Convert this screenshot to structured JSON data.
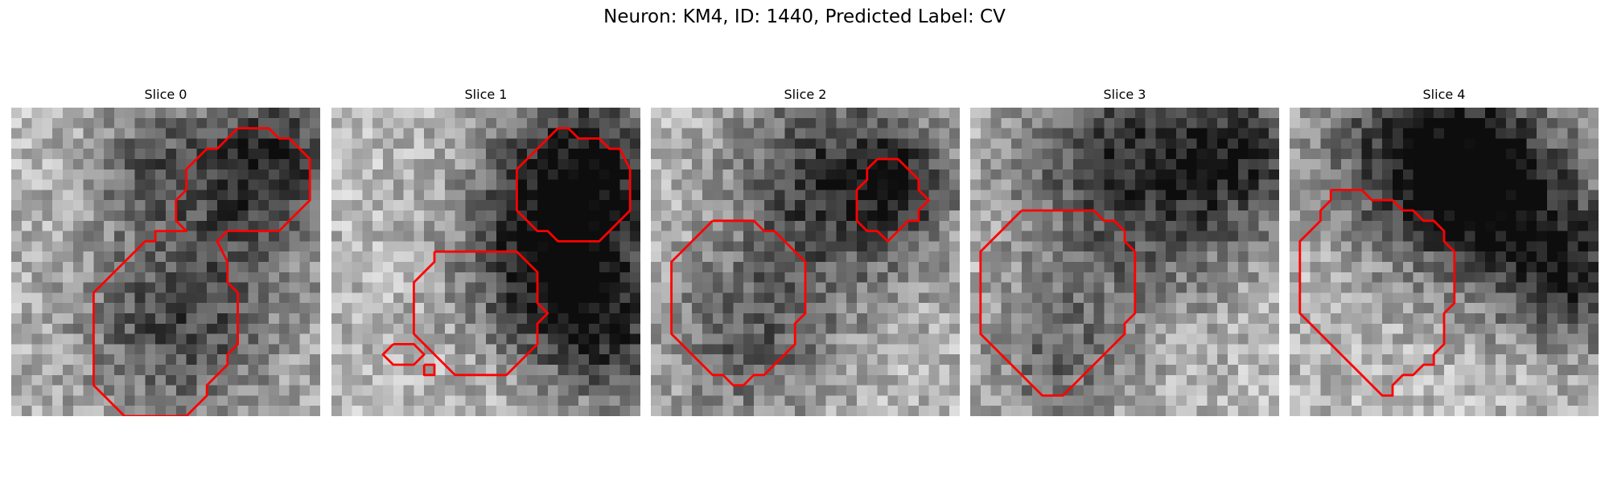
{
  "figure": {
    "title": "Neuron: KM4, ID: 1440, Predicted Label: CV"
  },
  "colors": {
    "contour": "#ff0000",
    "colormap": "gray"
  },
  "panels": [
    {
      "title": "Slice 0",
      "dark_regions": [
        {
          "cx": 24,
          "cy": 5,
          "r": 6,
          "s": 0.55
        },
        {
          "cx": 16,
          "cy": 20,
          "r": 7,
          "s": 0.45
        },
        {
          "cx": 12,
          "cy": 5,
          "r": 4,
          "s": 0.25
        }
      ],
      "contours": [
        [
          [
            22,
            2
          ],
          [
            25,
            2
          ],
          [
            26,
            3
          ],
          [
            27,
            3
          ],
          [
            28,
            4
          ],
          [
            29,
            5
          ],
          [
            29,
            9
          ],
          [
            28,
            10
          ],
          [
            27,
            11
          ],
          [
            26,
            12
          ],
          [
            21,
            12
          ],
          [
            20,
            13
          ],
          [
            21,
            15
          ],
          [
            21,
            17
          ],
          [
            22,
            18
          ],
          [
            22,
            23
          ],
          [
            21,
            24
          ],
          [
            21,
            25
          ],
          [
            20,
            26
          ],
          [
            19,
            27
          ],
          [
            19,
            28
          ],
          [
            18,
            29
          ],
          [
            17,
            30
          ],
          [
            11,
            30
          ],
          [
            11,
            30
          ],
          [
            10,
            29
          ],
          [
            9,
            28
          ],
          [
            8,
            27
          ],
          [
            8,
            18
          ],
          [
            9,
            17
          ],
          [
            10,
            16
          ],
          [
            11,
            15
          ],
          [
            12,
            14
          ],
          [
            13,
            13
          ],
          [
            14,
            13
          ],
          [
            14,
            12
          ],
          [
            17,
            12
          ],
          [
            16,
            11
          ],
          [
            16,
            9
          ],
          [
            17,
            8
          ],
          [
            17,
            6
          ],
          [
            18,
            5
          ],
          [
            19,
            4
          ],
          [
            20,
            4
          ],
          [
            21,
            3
          ],
          [
            22,
            2
          ]
        ]
      ]
    },
    {
      "title": "Slice 1",
      "dark_regions": [
        {
          "cx": 24,
          "cy": 5,
          "r": 6,
          "s": 0.6
        },
        {
          "cx": 21,
          "cy": 15,
          "r": 6,
          "s": 0.6
        },
        {
          "cx": 27,
          "cy": 22,
          "r": 5,
          "s": 0.4
        }
      ],
      "contours": [
        [
          [
            22,
            2
          ],
          [
            23,
            2
          ],
          [
            24,
            3
          ],
          [
            26,
            3
          ],
          [
            27,
            4
          ],
          [
            28,
            4
          ],
          [
            29,
            6
          ],
          [
            29,
            7
          ],
          [
            29,
            10
          ],
          [
            28,
            11
          ],
          [
            27,
            12
          ],
          [
            26,
            13
          ],
          [
            25,
            13
          ],
          [
            22,
            13
          ],
          [
            21,
            12
          ],
          [
            20,
            12
          ],
          [
            19,
            11
          ],
          [
            18,
            10
          ],
          [
            18,
            6
          ],
          [
            19,
            5
          ],
          [
            20,
            4
          ],
          [
            21,
            3
          ],
          [
            22,
            2
          ]
        ],
        [
          [
            10,
            14
          ],
          [
            18,
            14
          ],
          [
            19,
            15
          ],
          [
            20,
            16
          ],
          [
            20,
            19
          ],
          [
            21,
            20
          ],
          [
            20,
            21
          ],
          [
            20,
            23
          ],
          [
            19,
            24
          ],
          [
            18,
            25
          ],
          [
            17,
            26
          ],
          [
            12,
            26
          ],
          [
            11,
            25
          ],
          [
            10,
            24
          ],
          [
            9,
            23
          ],
          [
            8,
            22
          ],
          [
            8,
            17
          ],
          [
            9,
            16
          ],
          [
            10,
            15
          ],
          [
            10,
            14
          ]
        ],
        [
          [
            6,
            23
          ],
          [
            8,
            23
          ],
          [
            9,
            24
          ],
          [
            8,
            25
          ],
          [
            6,
            25
          ],
          [
            5,
            24
          ],
          [
            6,
            23
          ]
        ],
        [
          [
            9,
            25
          ],
          [
            10,
            25
          ],
          [
            10,
            26
          ],
          [
            9,
            26
          ],
          [
            9,
            25
          ]
        ]
      ]
    },
    {
      "title": "Slice 2",
      "dark_regions": [
        {
          "cx": 18,
          "cy": 7,
          "r": 7,
          "s": 0.55
        },
        {
          "cx": 9,
          "cy": 22,
          "r": 6,
          "s": 0.35
        },
        {
          "cx": 24,
          "cy": 7,
          "r": 3,
          "s": 0.3
        }
      ],
      "contours": [
        [
          [
            6,
            11
          ],
          [
            10,
            11
          ],
          [
            11,
            12
          ],
          [
            12,
            12
          ],
          [
            13,
            13
          ],
          [
            14,
            14
          ],
          [
            15,
            15
          ],
          [
            15,
            20
          ],
          [
            14,
            21
          ],
          [
            14,
            23
          ],
          [
            13,
            24
          ],
          [
            12,
            25
          ],
          [
            11,
            26
          ],
          [
            10,
            26
          ],
          [
            9,
            27
          ],
          [
            8,
            27
          ],
          [
            7,
            26
          ],
          [
            6,
            26
          ],
          [
            5,
            25
          ],
          [
            4,
            24
          ],
          [
            3,
            23
          ],
          [
            2,
            22
          ],
          [
            2,
            15
          ],
          [
            3,
            14
          ],
          [
            4,
            13
          ],
          [
            5,
            12
          ],
          [
            6,
            11
          ]
        ],
        [
          [
            22,
            5
          ],
          [
            24,
            5
          ],
          [
            25,
            6
          ],
          [
            26,
            7
          ],
          [
            26,
            8
          ],
          [
            27,
            9
          ],
          [
            26,
            10
          ],
          [
            26,
            11
          ],
          [
            25,
            11
          ],
          [
            24,
            12
          ],
          [
            24,
            12
          ],
          [
            23,
            13
          ],
          [
            22,
            12
          ],
          [
            21,
            12
          ],
          [
            20,
            11
          ],
          [
            20,
            10
          ],
          [
            20,
            9
          ],
          [
            20,
            8
          ],
          [
            21,
            7
          ],
          [
            21,
            6
          ],
          [
            22,
            5
          ]
        ]
      ]
    },
    {
      "title": "Slice 3",
      "dark_regions": [
        {
          "cx": 16,
          "cy": 6,
          "r": 8,
          "s": 0.55
        },
        {
          "cx": 8,
          "cy": 24,
          "r": 5,
          "s": 0.3
        },
        {
          "cx": 27,
          "cy": 4,
          "r": 5,
          "s": 0.35
        }
      ],
      "contours": [
        [
          [
            5,
            10
          ],
          [
            12,
            10
          ],
          [
            13,
            11
          ],
          [
            14,
            11
          ],
          [
            15,
            12
          ],
          [
            15,
            13
          ],
          [
            16,
            14
          ],
          [
            16,
            20
          ],
          [
            15,
            21
          ],
          [
            15,
            22
          ],
          [
            14,
            23
          ],
          [
            13,
            24
          ],
          [
            12,
            25
          ],
          [
            11,
            26
          ],
          [
            10,
            27
          ],
          [
            9,
            28
          ],
          [
            7,
            28
          ],
          [
            6,
            27
          ],
          [
            5,
            26
          ],
          [
            4,
            25
          ],
          [
            3,
            24
          ],
          [
            2,
            23
          ],
          [
            1,
            22
          ],
          [
            1,
            15
          ],
          [
            1,
            14
          ],
          [
            2,
            13
          ],
          [
            2,
            13
          ],
          [
            3,
            12
          ],
          [
            4,
            11
          ],
          [
            5,
            10
          ]
        ]
      ]
    },
    {
      "title": "Slice 4",
      "dark_regions": [
        {
          "cx": 13,
          "cy": 4,
          "r": 7,
          "s": 0.6
        },
        {
          "cx": 27,
          "cy": 16,
          "r": 5,
          "s": 0.5
        },
        {
          "cx": 20,
          "cy": 8,
          "r": 6,
          "s": 0.45
        }
      ],
      "contours": [
        [
          [
            4,
            8
          ],
          [
            7,
            8
          ],
          [
            8,
            9
          ],
          [
            10,
            9
          ],
          [
            11,
            10
          ],
          [
            12,
            10
          ],
          [
            13,
            11
          ],
          [
            14,
            11
          ],
          [
            15,
            12
          ],
          [
            15,
            13
          ],
          [
            16,
            14
          ],
          [
            16,
            15
          ],
          [
            16,
            19
          ],
          [
            15,
            20
          ],
          [
            15,
            23
          ],
          [
            14,
            24
          ],
          [
            14,
            25
          ],
          [
            13,
            25
          ],
          [
            12,
            26
          ],
          [
            11,
            26
          ],
          [
            10,
            27
          ],
          [
            10,
            28
          ],
          [
            9,
            28
          ],
          [
            8,
            27
          ],
          [
            8,
            27
          ],
          [
            7,
            26
          ],
          [
            6,
            25
          ],
          [
            5,
            24
          ],
          [
            4,
            23
          ],
          [
            3,
            22
          ],
          [
            2,
            21
          ],
          [
            1,
            20
          ],
          [
            1,
            13
          ],
          [
            2,
            12
          ],
          [
            3,
            11
          ],
          [
            3,
            10
          ],
          [
            4,
            9
          ],
          [
            4,
            8
          ]
        ]
      ]
    }
  ]
}
